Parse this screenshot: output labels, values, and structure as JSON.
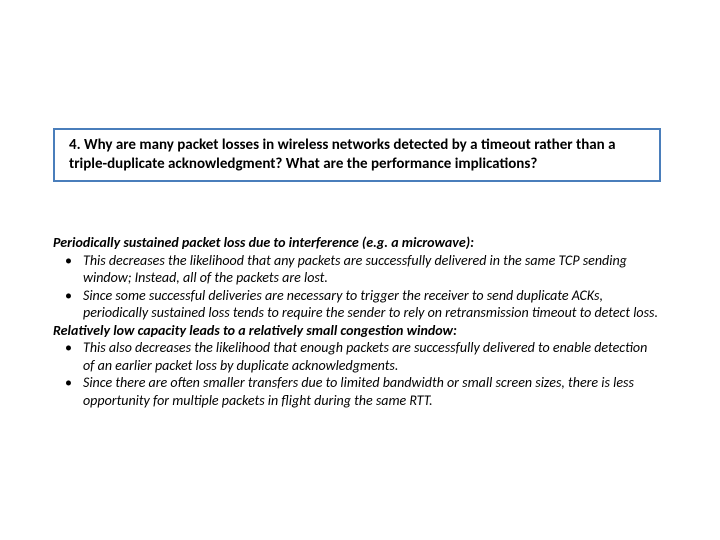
{
  "colors": {
    "page_bg": "#ffffff",
    "text": "#000000",
    "box_border": "#4a7ebb"
  },
  "question": "4. Why are many packet losses in wireless networks detected by a timeout rather than a triple-duplicate acknowledgment?  What are the performance implications?",
  "answer": {
    "heading1": "Periodically sustained packet loss due to interference (e.g. a microwave):",
    "bullets1": [
      "This decreases the likelihood that any packets are successfully delivered in the same TCP sending window; Instead, all of the packets are lost.",
      "Since some successful deliveries are necessary to trigger the receiver to send duplicate ACKs, periodically sustained loss tends to require the sender to rely on retransmission timeout to detect loss."
    ],
    "heading2": "Relatively low capacity leads to a relatively small congestion window:",
    "bullets2": [
      "This also decreases the likelihood that enough packets are successfully delivered to enable detection of an earlier packet loss by duplicate acknowledgments.",
      "Since there are often smaller transfers due to limited bandwidth or small screen sizes, there is less opportunity for multiple packets in flight during the same RTT."
    ]
  }
}
